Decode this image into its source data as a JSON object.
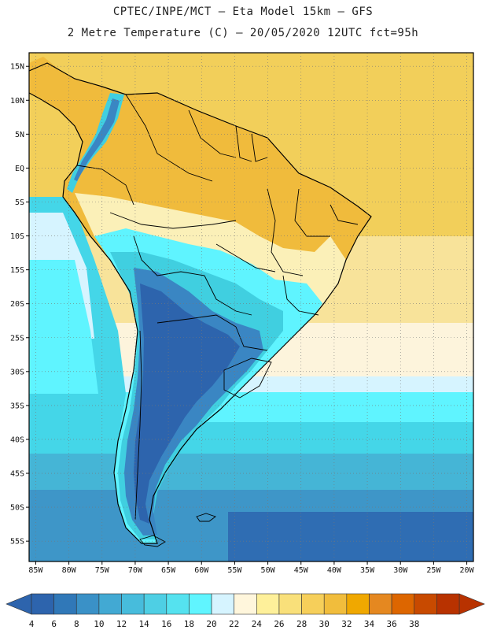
{
  "header": {
    "line1": "CPTEC/INPE/MCT –  Eta Model 15km – GFS",
    "line2": "2 Metre Temperature (C) – 20/05/2020 12UTC fct=95h"
  },
  "map": {
    "lon_range": [
      -86,
      -19
    ],
    "lat_range": [
      -58,
      17
    ],
    "lat_ticks": [
      {
        "value": 15,
        "label": "15N"
      },
      {
        "value": 10,
        "label": "10N"
      },
      {
        "value": 5,
        "label": "5N"
      },
      {
        "value": 0,
        "label": "EQ"
      },
      {
        "value": -5,
        "label": "5S"
      },
      {
        "value": -10,
        "label": "10S"
      },
      {
        "value": -15,
        "label": "15S"
      },
      {
        "value": -20,
        "label": "20S"
      },
      {
        "value": -25,
        "label": "25S"
      },
      {
        "value": -30,
        "label": "30S"
      },
      {
        "value": -35,
        "label": "35S"
      },
      {
        "value": -40,
        "label": "40S"
      },
      {
        "value": -45,
        "label": "45S"
      },
      {
        "value": -50,
        "label": "50S"
      },
      {
        "value": -55,
        "label": "55S"
      }
    ],
    "lon_ticks": [
      {
        "value": -85,
        "label": "85W"
      },
      {
        "value": -80,
        "label": "80W"
      },
      {
        "value": -75,
        "label": "75W"
      },
      {
        "value": -70,
        "label": "70W"
      },
      {
        "value": -65,
        "label": "65W"
      },
      {
        "value": -60,
        "label": "60W"
      },
      {
        "value": -55,
        "label": "55W"
      },
      {
        "value": -50,
        "label": "50W"
      },
      {
        "value": -45,
        "label": "45W"
      },
      {
        "value": -40,
        "label": "40W"
      },
      {
        "value": -35,
        "label": "35W"
      },
      {
        "value": -30,
        "label": "30W"
      },
      {
        "value": -25,
        "label": "25W"
      },
      {
        "value": -20,
        "label": "20W"
      }
    ],
    "colors": {
      "ocean_warm": "#f2cf5a",
      "ocean_mild": "#f8e39a",
      "ocean_cool": "#fdf4dc",
      "land_hot": "#f0bb3c",
      "land_warm": "#f6d978",
      "land_mild": "#fbf0b8",
      "land_pale": "#d6f4ff",
      "land_cyan": "#5ff4ff",
      "land_teal": "#40cfe0",
      "land_blue": "#3a86c3",
      "land_darkblue": "#2d64ad",
      "ocean_cyan": "#5ff4ff",
      "ocean_teal": "#44d6e8",
      "ocean_blue": "#45b5d6",
      "ocean_deep": "#3e96c8",
      "ocean_deepest": "#2f6db3",
      "coast": "#000000"
    }
  },
  "colorbar": {
    "labels": [
      "4",
      "6",
      "8",
      "10",
      "12",
      "14",
      "16",
      "18",
      "20",
      "22",
      "24",
      "26",
      "28",
      "30",
      "32",
      "34",
      "36",
      "38"
    ],
    "colors": [
      "#2d64ad",
      "#3078b8",
      "#3a91c7",
      "#42a9d3",
      "#47bcdc",
      "#4ecfe4",
      "#55e2ef",
      "#60f5ff",
      "#d6f4ff",
      "#fff6dc",
      "#fef09a",
      "#f9e07a",
      "#f6cf5a",
      "#f1bd3c",
      "#f0a800",
      "#e58820",
      "#dd6600",
      "#c84a00",
      "#b83200"
    ],
    "under_color": "#2d64ad",
    "over_color": "#b83200"
  }
}
